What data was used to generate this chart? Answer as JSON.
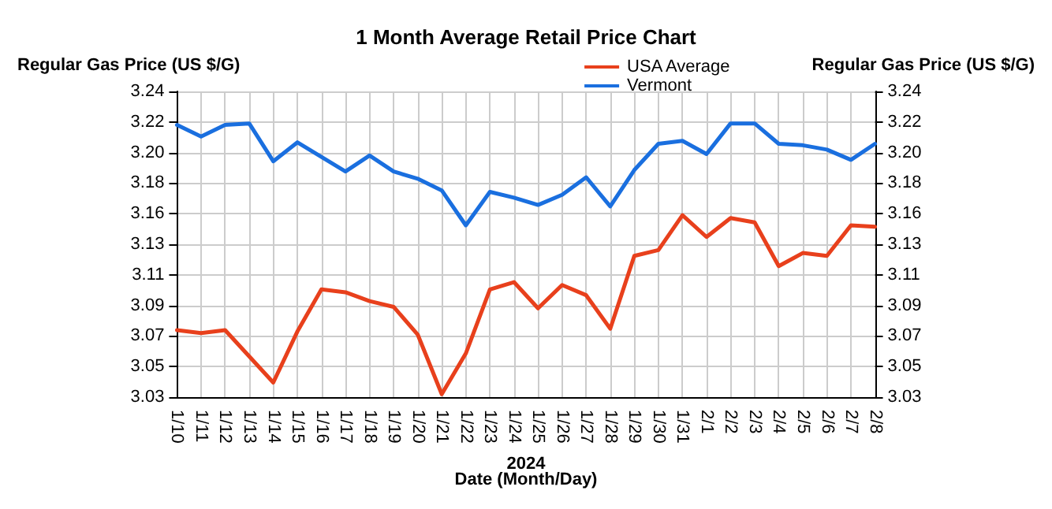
{
  "chart_data": {
    "type": "line",
    "title": "1 Month Average Retail Price Chart",
    "xlabel": "Date (Month/Day)",
    "ylabel": "Regular Gas Price (US $/G)",
    "y2label": "Regular Gas Price (US $/G)",
    "annotations": [
      "2024"
    ],
    "categories": [
      "1/10",
      "1/11",
      "1/12",
      "1/13",
      "1/14",
      "1/15",
      "1/16",
      "1/17",
      "1/18",
      "1/19",
      "1/20",
      "1/21",
      "1/22",
      "1/23",
      "1/24",
      "1/25",
      "1/26",
      "1/27",
      "1/28",
      "1/29",
      "1/30",
      "1/31",
      "2/1",
      "2/2",
      "2/3",
      "2/4",
      "2/5",
      "2/6",
      "2/7",
      "2/8"
    ],
    "series": [
      {
        "name": "USA Average",
        "color": "#e8401c",
        "values": [
          3.076,
          3.074,
          3.076,
          3.058,
          3.04,
          3.075,
          3.104,
          3.102,
          3.096,
          3.092,
          3.073,
          3.032,
          3.06,
          3.104,
          3.109,
          3.091,
          3.107,
          3.1,
          3.077,
          3.127,
          3.131,
          3.155,
          3.14,
          3.153,
          3.15,
          3.12,
          3.129,
          3.127,
          3.148,
          3.147
        ]
      },
      {
        "name": "Vermont",
        "color": "#1a6fdf",
        "values": [
          3.217,
          3.209,
          3.217,
          3.218,
          3.192,
          3.205,
          3.195,
          3.185,
          3.196,
          3.185,
          3.18,
          3.172,
          3.148,
          3.171,
          3.167,
          3.162,
          3.169,
          3.181,
          3.161,
          3.186,
          3.204,
          3.206,
          3.197,
          3.218,
          3.218,
          3.204,
          3.203,
          3.2,
          3.193,
          3.204
        ]
      }
    ],
    "ylim": [
      3.03,
      3.24
    ],
    "yticks": [
      3.03,
      {
        "value": 3.051,
        "label": "3.05"
      },
      {
        "value": 3.072,
        "label": "3.07"
      },
      {
        "value": 3.093,
        "label": "3.09"
      },
      {
        "value": 3.114,
        "label": "3.11"
      },
      {
        "value": 3.135,
        "label": "3.13"
      },
      {
        "value": 3.156,
        "label": "3.16"
      },
      {
        "value": 3.177,
        "label": "3.18"
      },
      {
        "value": 3.198,
        "label": "3.20"
      },
      {
        "value": 3.219,
        "label": "3.22"
      },
      3.24
    ],
    "y2lim": [
      3.03,
      3.24
    ],
    "y2ticks": [
      3.03,
      {
        "value": 3.051,
        "label": "3.05"
      },
      {
        "value": 3.072,
        "label": "3.07"
      },
      {
        "value": 3.093,
        "label": "3.09"
      },
      {
        "value": 3.114,
        "label": "3.11"
      },
      {
        "value": 3.135,
        "label": "3.13"
      },
      {
        "value": 3.156,
        "label": "3.16"
      },
      {
        "value": 3.177,
        "label": "3.18"
      },
      {
        "value": 3.198,
        "label": "3.20"
      },
      {
        "value": 3.219,
        "label": "3.22"
      },
      3.24
    ],
    "grid": true,
    "legend": "top right",
    "marker": "none",
    "line_style": "solid"
  }
}
